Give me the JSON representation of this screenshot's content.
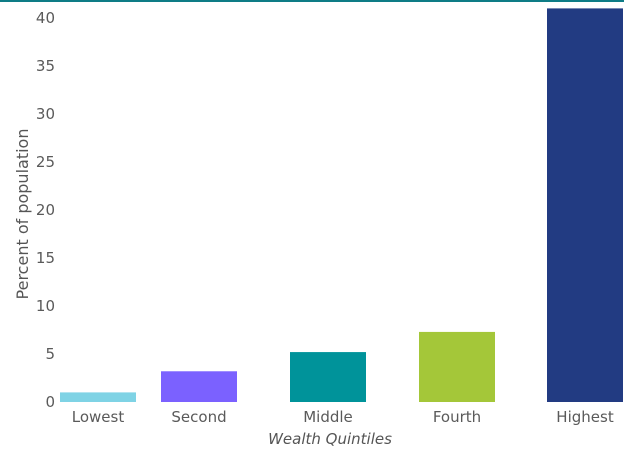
{
  "chart_data": {
    "type": "bar",
    "categories": [
      "Lowest",
      "Second",
      "Middle",
      "Fourth",
      "Highest"
    ],
    "values": [
      1.0,
      3.2,
      5.2,
      7.3,
      41.0
    ],
    "colors": [
      "#7fd3e5",
      "#7b61ff",
      "#00939a",
      "#a4c739",
      "#223b82"
    ],
    "xlabel": "Wealth Quintiles",
    "ylabel": "Percent of population",
    "yticks": [
      0,
      5,
      10,
      15,
      20,
      25,
      30,
      35,
      40
    ],
    "ylim": [
      0,
      41
    ],
    "grid": false,
    "legend": "none",
    "top_rule_color": "#0e7c86"
  }
}
